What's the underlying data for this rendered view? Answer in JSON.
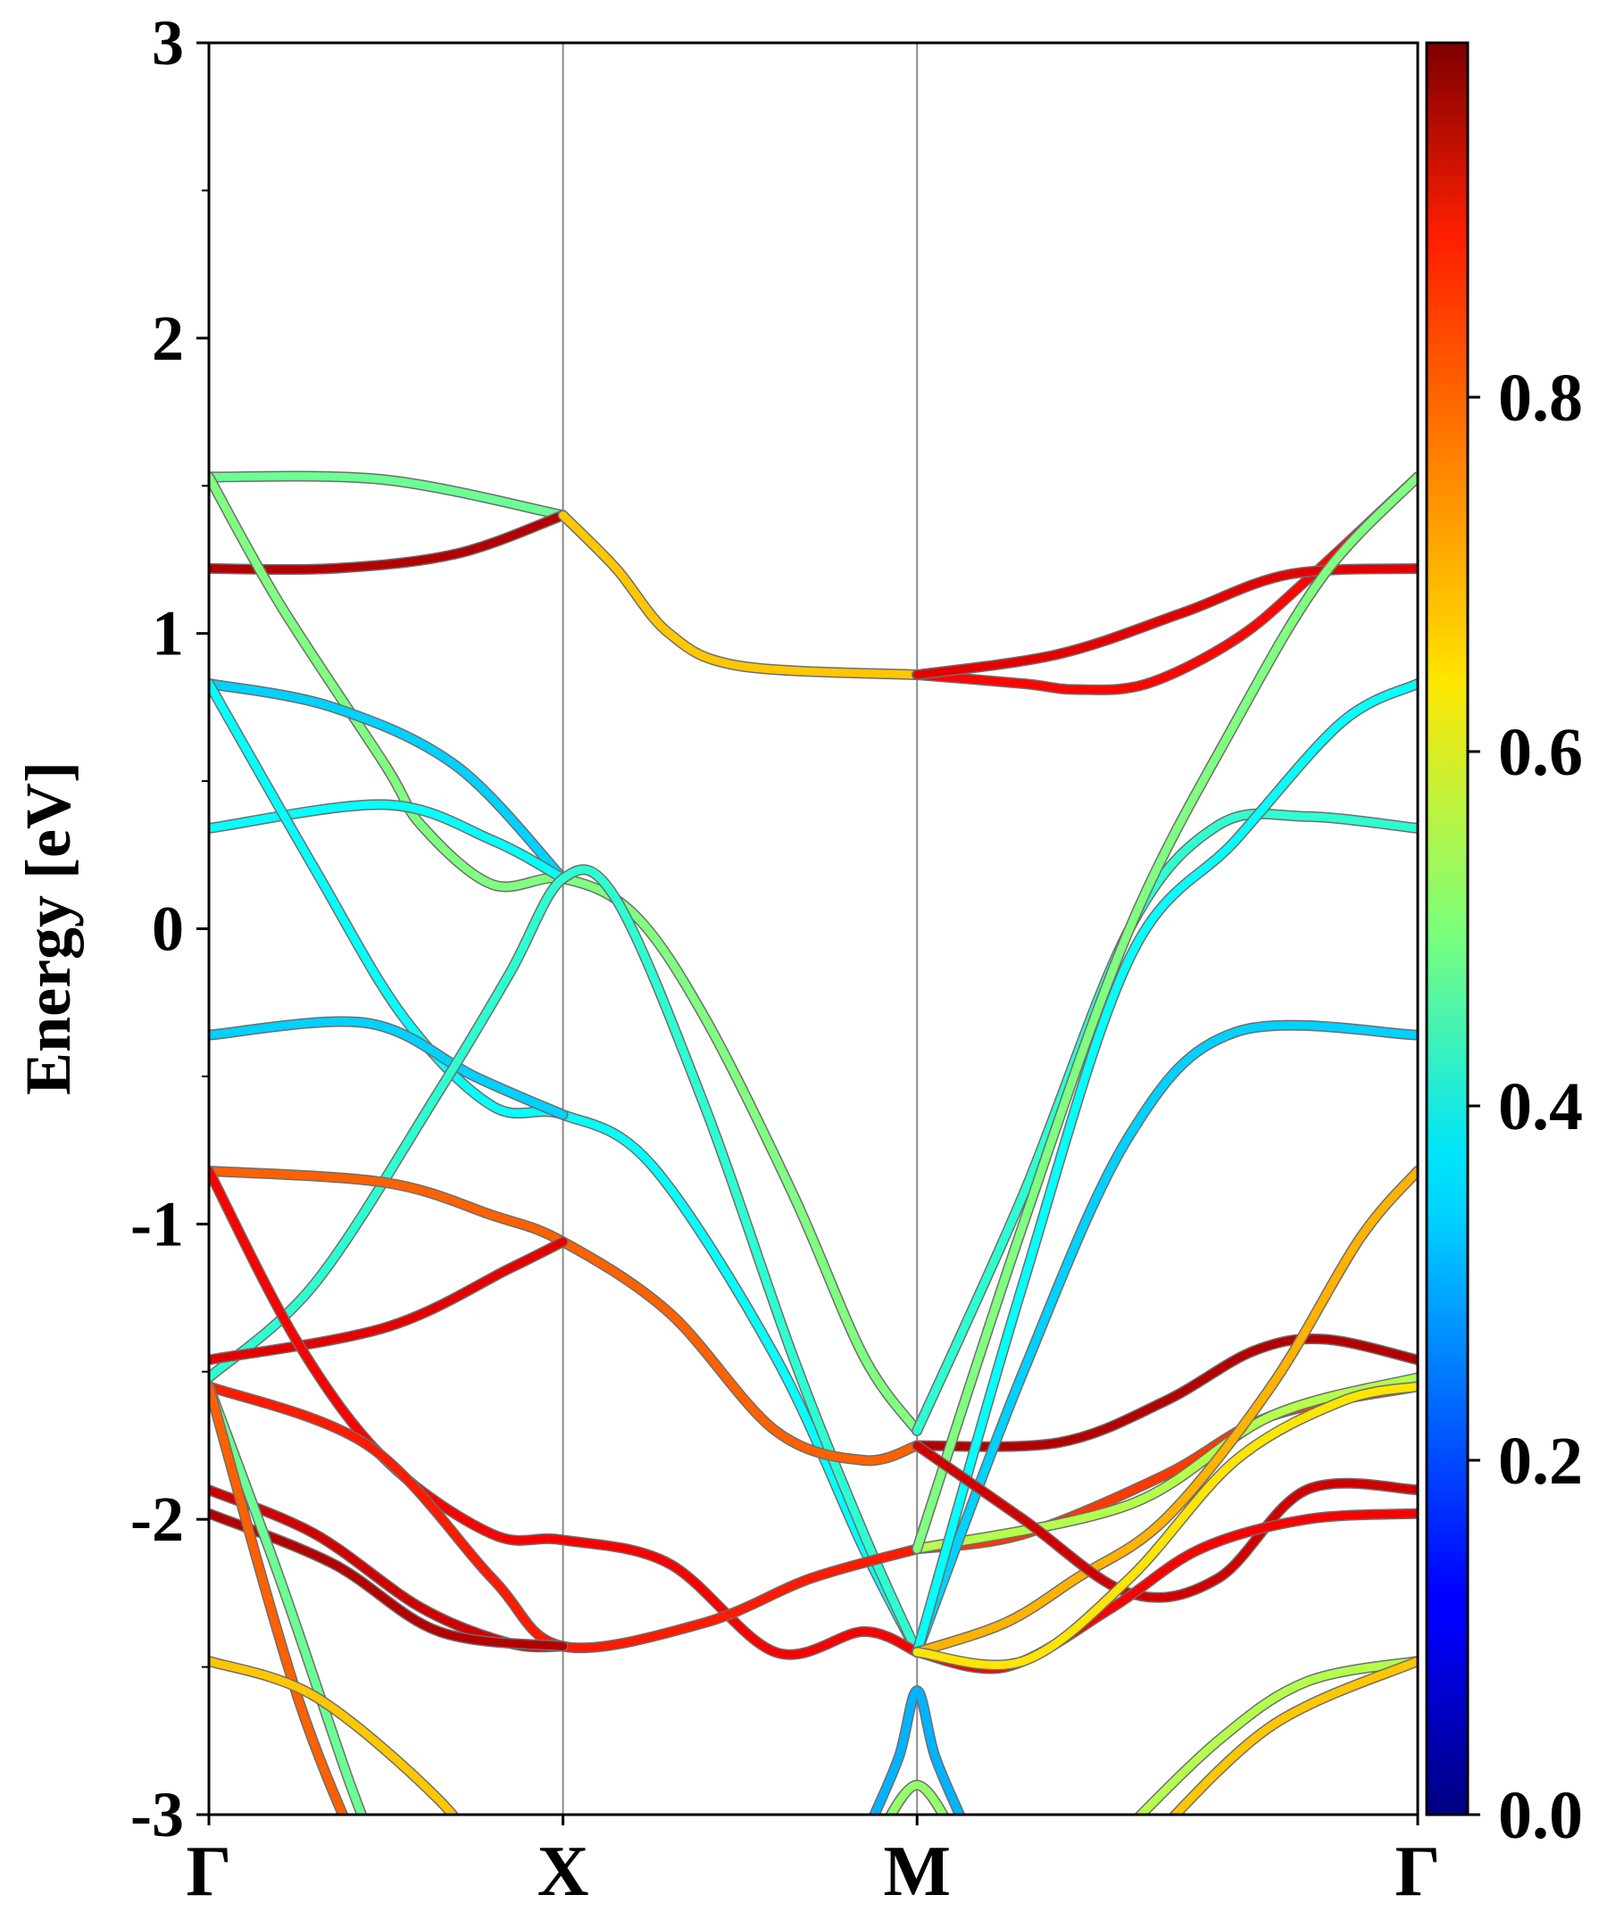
{
  "chart_data": {
    "type": "line",
    "subtype": "band-structure",
    "ylabel": "Energy [eV]",
    "ylim": [
      -3,
      3
    ],
    "yticks": [
      "3",
      "2",
      "1",
      "0",
      "-1",
      "-2",
      "-3"
    ],
    "kpoints": [
      {
        "label": "Γ",
        "x": 0
      },
      {
        "label": "X",
        "x": 1
      },
      {
        "label": "M",
        "x": 2
      },
      {
        "label": "Γ",
        "x": 3.414
      }
    ],
    "colorbar": {
      "colormap": "jet",
      "range": [
        0.0,
        1.0
      ],
      "ticks": [
        "0.8",
        "0.6",
        "0.4",
        "0.2",
        "0.0"
      ]
    },
    "series": [
      {
        "color_value": 0.48,
        "points": [
          [
            0,
            1.53
          ],
          [
            0.5,
            1.52
          ],
          [
            1,
            1.4
          ]
        ]
      },
      {
        "color_value": 0.95,
        "points": [
          [
            0,
            1.22
          ],
          [
            0.35,
            1.22
          ],
          [
            0.7,
            1.27
          ],
          [
            1,
            1.4
          ]
        ]
      },
      {
        "color_value": 0.68,
        "points": [
          [
            1,
            1.4
          ],
          [
            1.15,
            1.22
          ],
          [
            1.3,
            1.0
          ],
          [
            1.5,
            0.89
          ],
          [
            2,
            0.86
          ]
        ]
      },
      {
        "color_value": 0.87,
        "points": [
          [
            2,
            0.86
          ],
          [
            2.3,
            0.83
          ],
          [
            2.45,
            0.81
          ],
          [
            2.65,
            0.83
          ],
          [
            2.9,
            0.98
          ],
          [
            3.1,
            1.18
          ],
          [
            3.414,
            1.53
          ]
        ]
      },
      {
        "color_value": 0.9,
        "points": [
          [
            2,
            0.86
          ],
          [
            2.4,
            0.93
          ],
          [
            2.75,
            1.07
          ],
          [
            3.05,
            1.2
          ],
          [
            3.414,
            1.22
          ]
        ]
      },
      {
        "color_value": 0.5,
        "points": [
          [
            0,
            1.53
          ],
          [
            0.2,
            1.1
          ],
          [
            0.5,
            0.55
          ],
          [
            0.6,
            0.35
          ],
          [
            0.8,
            0.15
          ],
          [
            1,
            0.17
          ],
          [
            1.2,
            0.05
          ],
          [
            1.4,
            -0.3
          ],
          [
            1.65,
            -0.9
          ],
          [
            1.85,
            -1.45
          ],
          [
            2,
            -1.7
          ]
        ]
      },
      {
        "color_value": 0.33,
        "points": [
          [
            0,
            0.83
          ],
          [
            0.35,
            0.75
          ],
          [
            0.7,
            0.55
          ],
          [
            1,
            0.17
          ]
        ]
      },
      {
        "color_value": 0.38,
        "points": [
          [
            0,
            0.34
          ],
          [
            0.5,
            0.42
          ],
          [
            0.8,
            0.3
          ],
          [
            1,
            0.17
          ]
        ]
      },
      {
        "color_value": 0.38,
        "points": [
          [
            0,
            0.83
          ],
          [
            0.3,
            0.2
          ],
          [
            0.55,
            -0.3
          ],
          [
            0.8,
            -0.6
          ],
          [
            1,
            -0.63
          ],
          [
            1.25,
            -0.8
          ],
          [
            1.6,
            -1.45
          ],
          [
            1.85,
            -2.1
          ],
          [
            2,
            -2.45
          ]
        ]
      },
      {
        "color_value": 0.33,
        "points": [
          [
            0,
            -0.36
          ],
          [
            0.45,
            -0.32
          ],
          [
            0.75,
            -0.5
          ],
          [
            1,
            -0.63
          ]
        ]
      },
      {
        "color_value": 0.42,
        "points": [
          [
            0,
            -1.52
          ],
          [
            0.3,
            -1.2
          ],
          [
            0.65,
            -0.55
          ],
          [
            0.85,
            -0.15
          ],
          [
            1,
            0.17
          ],
          [
            1.15,
            0.1
          ],
          [
            1.4,
            -0.6
          ],
          [
            1.65,
            -1.45
          ],
          [
            1.85,
            -2.05
          ],
          [
            2,
            -2.45
          ]
        ]
      },
      {
        "color_value": 0.78,
        "points": [
          [
            0,
            -0.82
          ],
          [
            0.5,
            -0.86
          ],
          [
            0.8,
            -0.97
          ],
          [
            1,
            -1.06
          ],
          [
            1.3,
            -1.3
          ],
          [
            1.6,
            -1.7
          ],
          [
            1.85,
            -1.8
          ],
          [
            2,
            -1.75
          ]
        ]
      },
      {
        "color_value": 0.9,
        "points": [
          [
            0,
            -1.46
          ],
          [
            0.5,
            -1.35
          ],
          [
            0.85,
            -1.15
          ],
          [
            1,
            -1.06
          ]
        ]
      },
      {
        "color_value": 0.88,
        "points": [
          [
            0,
            -0.82
          ],
          [
            0.25,
            -1.4
          ],
          [
            0.5,
            -1.8
          ],
          [
            0.8,
            -2.05
          ],
          [
            1,
            -2.07
          ],
          [
            1.3,
            -2.15
          ],
          [
            1.6,
            -2.45
          ],
          [
            1.85,
            -2.38
          ],
          [
            2,
            -2.45
          ]
        ]
      },
      {
        "color_value": 0.85,
        "points": [
          [
            0,
            -1.55
          ],
          [
            0.45,
            -1.75
          ],
          [
            0.8,
            -2.2
          ],
          [
            1,
            -2.43
          ],
          [
            1.4,
            -2.35
          ],
          [
            1.7,
            -2.2
          ],
          [
            2,
            -2.1
          ]
        ]
      },
      {
        "color_value": 0.92,
        "points": [
          [
            0,
            -1.9
          ],
          [
            0.3,
            -2.05
          ],
          [
            0.6,
            -2.3
          ],
          [
            0.85,
            -2.42
          ],
          [
            1,
            -2.43
          ]
        ]
      },
      {
        "color_value": 0.95,
        "points": [
          [
            0,
            -1.98
          ],
          [
            0.35,
            -2.15
          ],
          [
            0.65,
            -2.38
          ],
          [
            1,
            -2.43
          ]
        ]
      },
      {
        "color_value": 0.48,
        "points": [
          [
            0,
            -1.55
          ],
          [
            0.2,
            -2.2
          ],
          [
            0.4,
            -2.9
          ],
          [
            0.5,
            -3.2
          ]
        ]
      },
      {
        "color_value": 0.78,
        "points": [
          [
            0,
            -1.55
          ],
          [
            0.25,
            -2.6
          ],
          [
            0.45,
            -3.2
          ]
        ]
      },
      {
        "color_value": 0.68,
        "points": [
          [
            0,
            -2.48
          ],
          [
            0.3,
            -2.6
          ],
          [
            0.65,
            -2.95
          ],
          [
            0.8,
            -3.2
          ]
        ]
      },
      {
        "color_value": 0.95,
        "points": [
          [
            2,
            -1.75
          ],
          [
            2.4,
            -1.74
          ],
          [
            2.7,
            -1.6
          ],
          [
            2.95,
            -1.43
          ],
          [
            3.15,
            -1.39
          ],
          [
            3.414,
            -1.46
          ]
        ]
      },
      {
        "color_value": 0.82,
        "points": [
          [
            2,
            -2.1
          ],
          [
            2.3,
            -2.05
          ],
          [
            2.7,
            -1.85
          ],
          [
            3.0,
            -1.65
          ],
          [
            3.414,
            -1.55
          ]
        ]
      },
      {
        "color_value": 0.55,
        "points": [
          [
            2,
            -2.1
          ],
          [
            2.6,
            -1.95
          ],
          [
            3.0,
            -1.65
          ],
          [
            3.414,
            -1.52
          ]
        ]
      },
      {
        "color_value": 0.42,
        "points": [
          [
            2,
            -1.7
          ],
          [
            2.3,
            -0.9
          ],
          [
            2.6,
            0.0
          ],
          [
            2.85,
            0.35
          ],
          [
            3.1,
            0.38
          ],
          [
            3.414,
            0.34
          ]
        ]
      },
      {
        "color_value": 0.5,
        "points": [
          [
            2,
            -2.1
          ],
          [
            2.3,
            -1.0
          ],
          [
            2.6,
            0.0
          ],
          [
            2.9,
            0.7
          ],
          [
            3.15,
            1.2
          ],
          [
            3.414,
            1.53
          ]
        ]
      },
      {
        "color_value": 0.33,
        "points": [
          [
            2,
            -2.45
          ],
          [
            2.3,
            -1.5
          ],
          [
            2.6,
            -0.7
          ],
          [
            2.9,
            -0.35
          ],
          [
            3.414,
            -0.36
          ]
        ]
      },
      {
        "color_value": 0.38,
        "points": [
          [
            2,
            -2.45
          ],
          [
            2.3,
            -1.2
          ],
          [
            2.6,
            -0.1
          ],
          [
            2.9,
            0.3
          ],
          [
            3.2,
            0.7
          ],
          [
            3.414,
            0.83
          ]
        ]
      },
      {
        "color_value": 0.7,
        "points": [
          [
            2,
            -2.45
          ],
          [
            2.25,
            -2.35
          ],
          [
            2.45,
            -2.2
          ],
          [
            2.7,
            -2.0
          ],
          [
            3.0,
            -1.55
          ],
          [
            3.25,
            -1.05
          ],
          [
            3.414,
            -0.82
          ]
        ]
      },
      {
        "color_value": 0.92,
        "points": [
          [
            2,
            -1.75
          ],
          [
            2.3,
            -2.0
          ],
          [
            2.6,
            -2.25
          ],
          [
            2.85,
            -2.2
          ],
          [
            3.1,
            -1.9
          ],
          [
            3.414,
            -1.9
          ]
        ]
      },
      {
        "color_value": 0.88,
        "points": [
          [
            2,
            -2.45
          ],
          [
            2.25,
            -2.5
          ],
          [
            2.55,
            -2.3
          ],
          [
            2.8,
            -2.1
          ],
          [
            3.1,
            -2.0
          ],
          [
            3.414,
            -1.98
          ]
        ]
      },
      {
        "color_value": 0.65,
        "points": [
          [
            2,
            -2.45
          ],
          [
            2.3,
            -2.48
          ],
          [
            2.6,
            -2.2
          ],
          [
            2.9,
            -1.8
          ],
          [
            3.2,
            -1.6
          ],
          [
            3.414,
            -1.55
          ]
        ]
      },
      {
        "color_value": 0.3,
        "points": [
          [
            1.88,
            -3.0
          ],
          [
            1.95,
            -2.8
          ],
          [
            2,
            -2.58
          ],
          [
            2.05,
            -2.8
          ],
          [
            2.12,
            -3.0
          ]
        ]
      },
      {
        "color_value": 0.52,
        "points": [
          [
            1.88,
            -3.1
          ],
          [
            2,
            -2.9
          ],
          [
            2.12,
            -3.1
          ]
        ]
      },
      {
        "color_value": 0.55,
        "points": [
          [
            2.55,
            -3.1
          ],
          [
            2.85,
            -2.75
          ],
          [
            3.1,
            -2.55
          ],
          [
            3.414,
            -2.48
          ]
        ]
      },
      {
        "color_value": 0.68,
        "points": [
          [
            2.65,
            -3.1
          ],
          [
            3.0,
            -2.7
          ],
          [
            3.414,
            -2.48
          ]
        ]
      }
    ]
  }
}
